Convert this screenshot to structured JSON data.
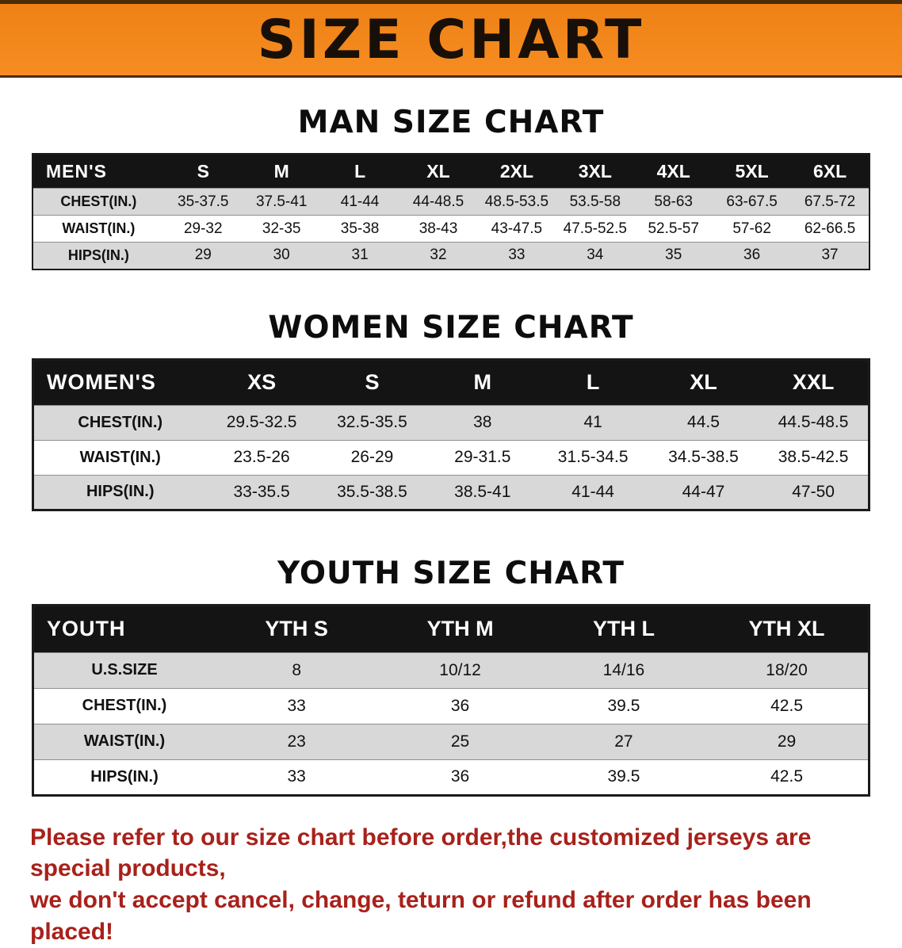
{
  "banner": {
    "title": "SIZE CHART"
  },
  "men": {
    "heading": "MAN SIZE CHART",
    "table": {
      "corner": "MEN'S",
      "sizes": [
        "S",
        "M",
        "L",
        "XL",
        "2XL",
        "3XL",
        "4XL",
        "5XL",
        "6XL"
      ],
      "rows": [
        {
          "label": "CHEST(IN.)",
          "values": [
            "35-37.5",
            "37.5-41",
            "41-44",
            "44-48.5",
            "48.5-53.5",
            "53.5-58",
            "58-63",
            "63-67.5",
            "67.5-72"
          ]
        },
        {
          "label": "WAIST(IN.)",
          "values": [
            "29-32",
            "32-35",
            "35-38",
            "38-43",
            "43-47.5",
            "47.5-52.5",
            "52.5-57",
            "57-62",
            "62-66.5"
          ]
        },
        {
          "label": "HIPS(IN.)",
          "values": [
            "29",
            "30",
            "31",
            "32",
            "33",
            "34",
            "35",
            "36",
            "37"
          ]
        }
      ]
    }
  },
  "women": {
    "heading": "WOMEN SIZE CHART",
    "table": {
      "corner": "WOMEN'S",
      "sizes": [
        "XS",
        "S",
        "M",
        "L",
        "XL",
        "XXL"
      ],
      "rows": [
        {
          "label": "CHEST(IN.)",
          "values": [
            "29.5-32.5",
            "32.5-35.5",
            "38",
            "41",
            "44.5",
            "44.5-48.5"
          ]
        },
        {
          "label": "WAIST(IN.)",
          "values": [
            "23.5-26",
            "26-29",
            "29-31.5",
            "31.5-34.5",
            "34.5-38.5",
            "38.5-42.5"
          ]
        },
        {
          "label": "HIPS(IN.)",
          "values": [
            "33-35.5",
            "35.5-38.5",
            "38.5-41",
            "41-44",
            "44-47",
            "47-50"
          ]
        }
      ]
    }
  },
  "youth": {
    "heading": "YOUTH SIZE CHART",
    "table": {
      "corner": "YOUTH",
      "sizes": [
        "YTH S",
        "YTH M",
        "YTH L",
        "YTH XL"
      ],
      "rows": [
        {
          "label": "U.S.SIZE",
          "values": [
            "8",
            "10/12",
            "14/16",
            "18/20"
          ]
        },
        {
          "label": "CHEST(IN.)",
          "values": [
            "33",
            "36",
            "39.5",
            "42.5"
          ]
        },
        {
          "label": "WAIST(IN.)",
          "values": [
            "23",
            "25",
            "27",
            "29"
          ]
        },
        {
          "label": "HIPS(IN.)",
          "values": [
            "33",
            "36",
            "39.5",
            "42.5"
          ]
        }
      ]
    }
  },
  "footer": {
    "line1": "Please refer to our size chart before order,the customized jerseys are special products,",
    "line2": "we don't accept cancel, change, teturn or refund after order has been placed!"
  },
  "colors": {
    "banner_bg": "#f0831c",
    "table_header_bg": "#141414",
    "row_shaded": "#d8d8d8",
    "notice_text": "#a8211b"
  }
}
